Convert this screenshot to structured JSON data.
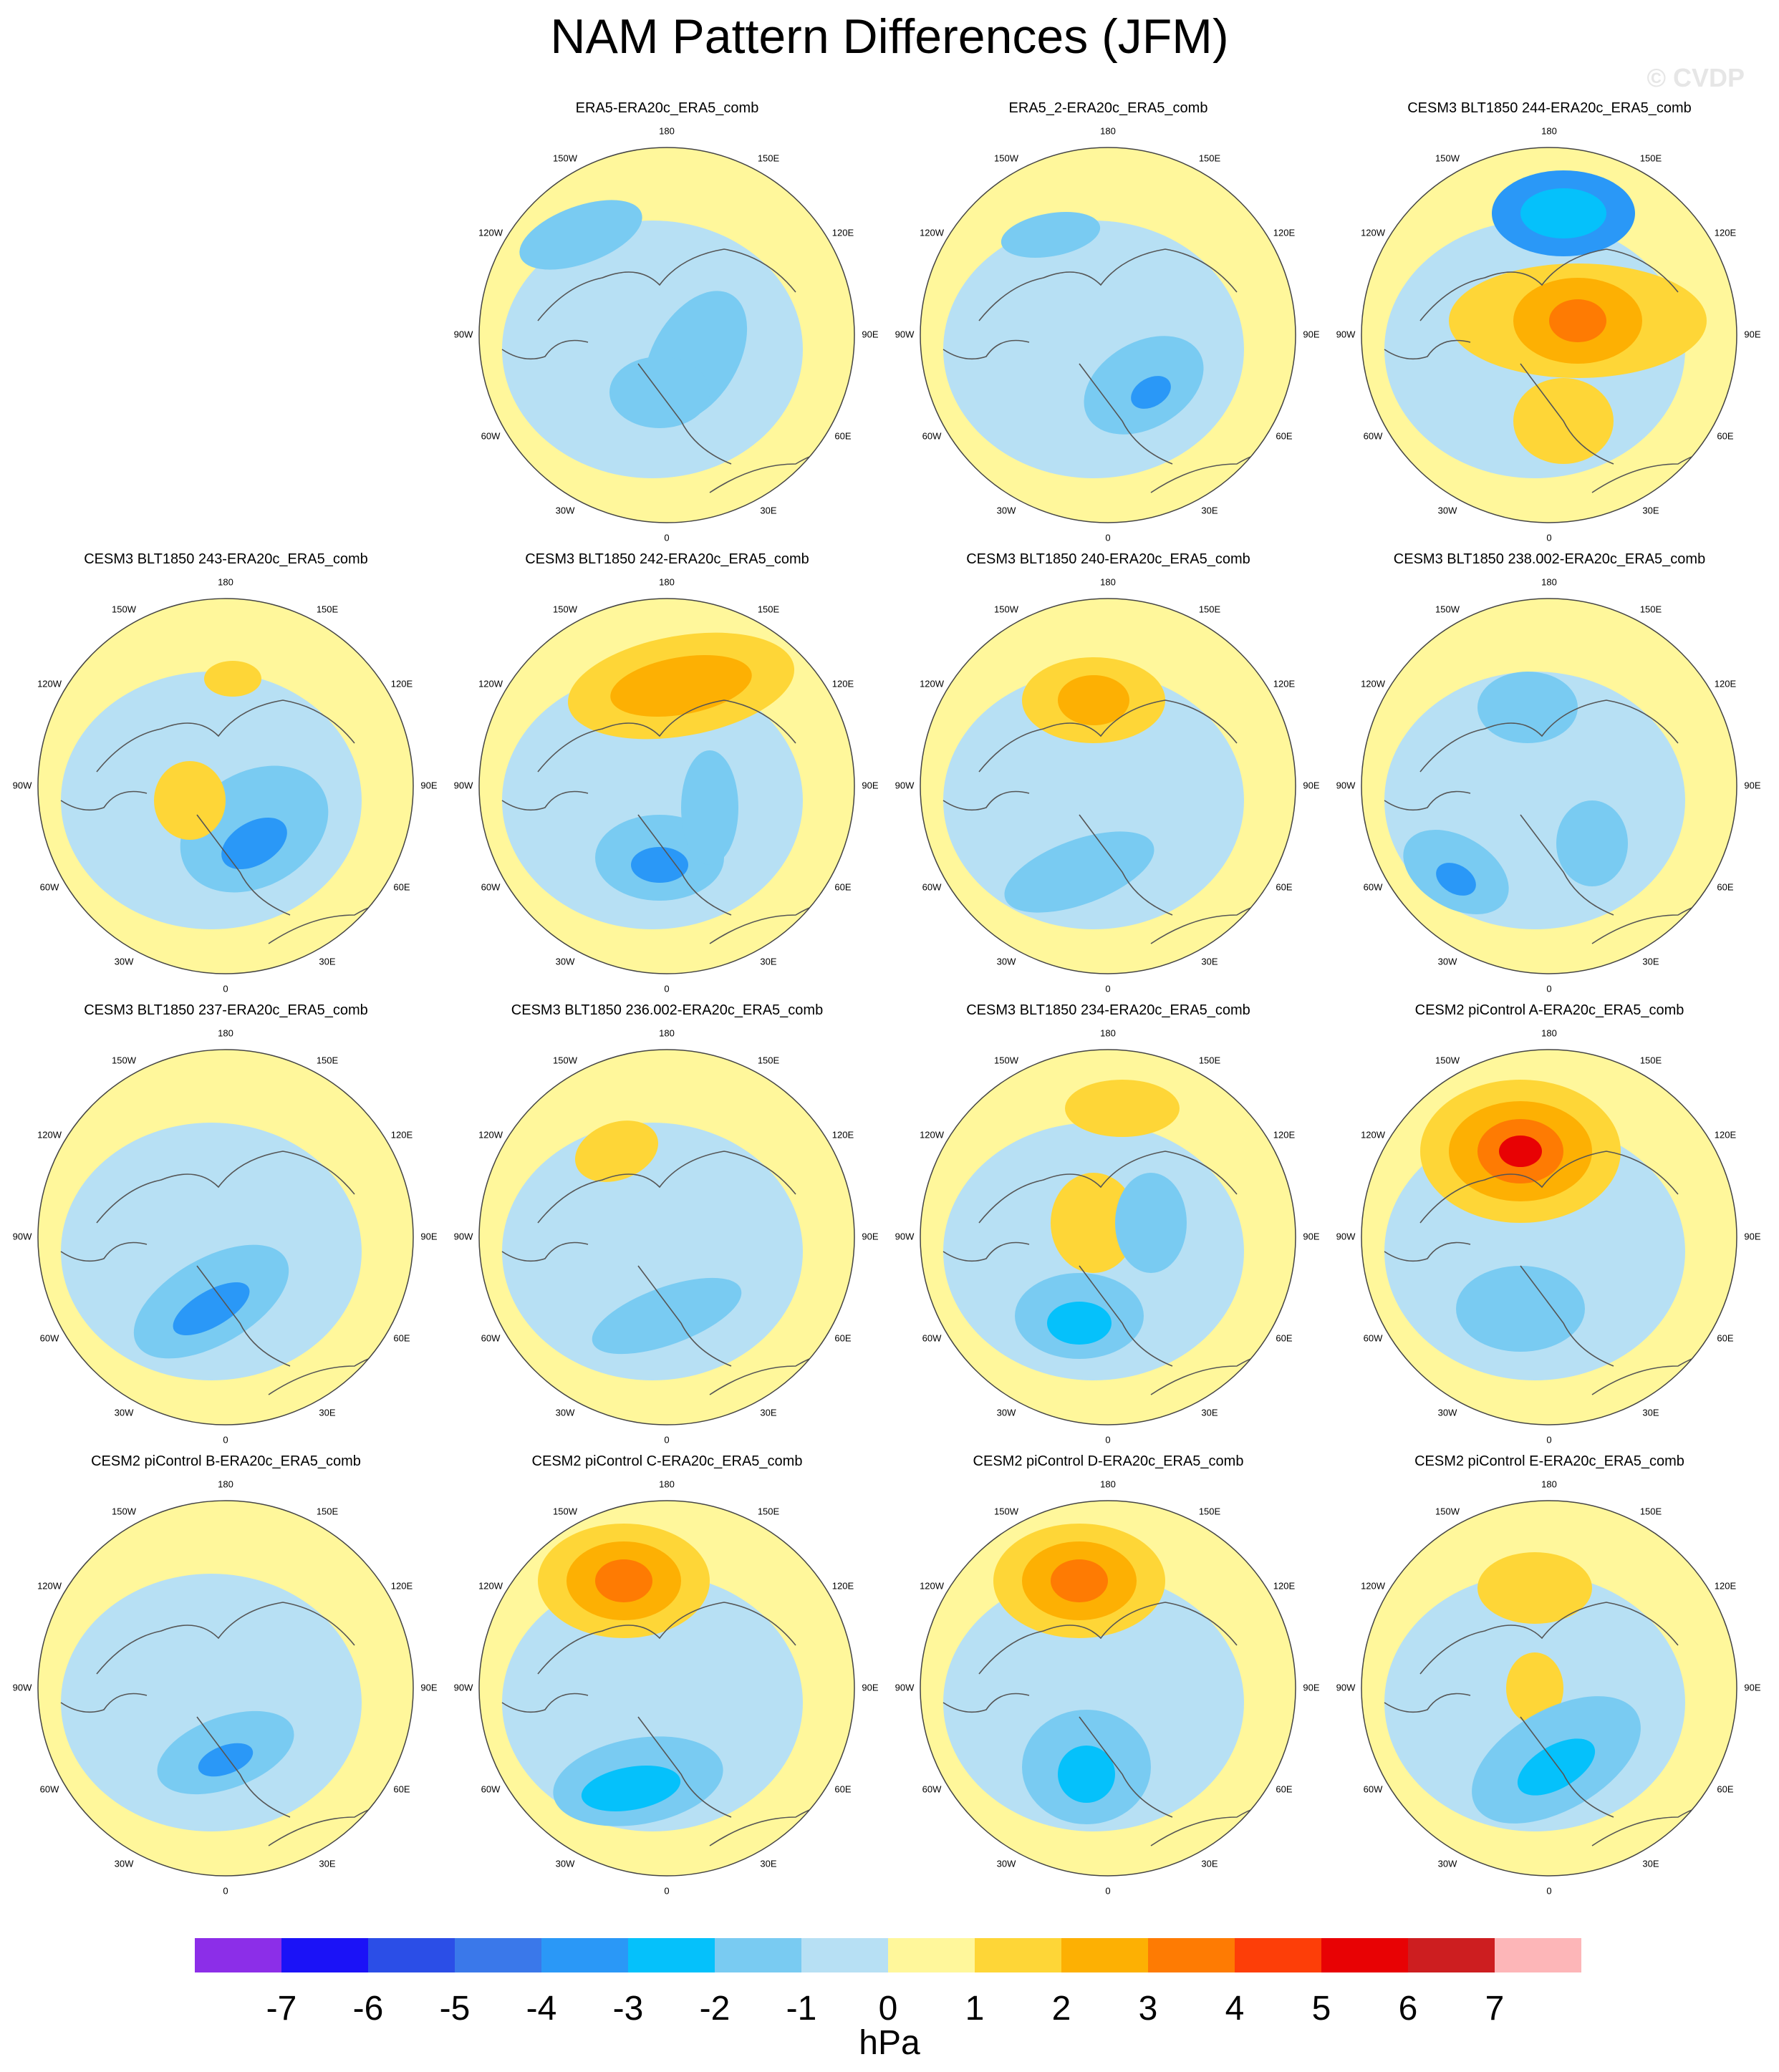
{
  "title": "NAM Pattern Differences (JFM)",
  "watermark": "© CVDP",
  "colorbar": {
    "colors": [
      "#8c2ee8",
      "#1b12f7",
      "#2b4ee7",
      "#3a78ea",
      "#2a98f7",
      "#05c1fb",
      "#79cbf2",
      "#b7e0f4",
      "#fff79b",
      "#fed637",
      "#fdb003",
      "#fe7b03",
      "#fd3e08",
      "#e80204",
      "#cd1e20",
      "#fdb6b8"
    ],
    "ticks": [
      "-7",
      "-6",
      "-5",
      "-4",
      "-3",
      "-2",
      "-1",
      "0",
      "1",
      "2",
      "3",
      "4",
      "5",
      "6",
      "7"
    ],
    "units": "hPa"
  },
  "lon_labels": [
    "180",
    "150E",
    "120E",
    "90E",
    "60E",
    "30E",
    "0",
    "30W",
    "60W",
    "90W",
    "120W",
    "150W"
  ],
  "panels": [
    {
      "title": "ERA5-ERA20c_ERA5_comb",
      "row": 0,
      "col": 1
    },
    {
      "title": "ERA5_2-ERA20c_ERA5_comb",
      "row": 0,
      "col": 2
    },
    {
      "title": "CESM3 BLT1850 244-ERA20c_ERA5_comb",
      "row": 0,
      "col": 3
    },
    {
      "title": "CESM3 BLT1850 243-ERA20c_ERA5_comb",
      "row": 1,
      "col": 0
    },
    {
      "title": "CESM3 BLT1850 242-ERA20c_ERA5_comb",
      "row": 1,
      "col": 1
    },
    {
      "title": "CESM3 BLT1850 240-ERA20c_ERA5_comb",
      "row": 1,
      "col": 2
    },
    {
      "title": "CESM3 BLT1850 238.002-ERA20c_ERA5_comb",
      "row": 1,
      "col": 3
    },
    {
      "title": "CESM3 BLT1850 237-ERA20c_ERA5_comb",
      "row": 2,
      "col": 0
    },
    {
      "title": "CESM3 BLT1850 236.002-ERA20c_ERA5_comb",
      "row": 2,
      "col": 1
    },
    {
      "title": "CESM3 BLT1850 234-ERA20c_ERA5_comb",
      "row": 2,
      "col": 2
    },
    {
      "title": "CESM2 piControl A-ERA20c_ERA5_comb",
      "row": 2,
      "col": 3
    },
    {
      "title": "CESM2 piControl B-ERA20c_ERA5_comb",
      "row": 3,
      "col": 0
    },
    {
      "title": "CESM2 piControl C-ERA20c_ERA5_comb",
      "row": 3,
      "col": 1
    },
    {
      "title": "CESM2 piControl D-ERA20c_ERA5_comb",
      "row": 3,
      "col": 2
    },
    {
      "title": "CESM2 piControl E-ERA20c_ERA5_comb",
      "row": 3,
      "col": 3
    }
  ]
}
